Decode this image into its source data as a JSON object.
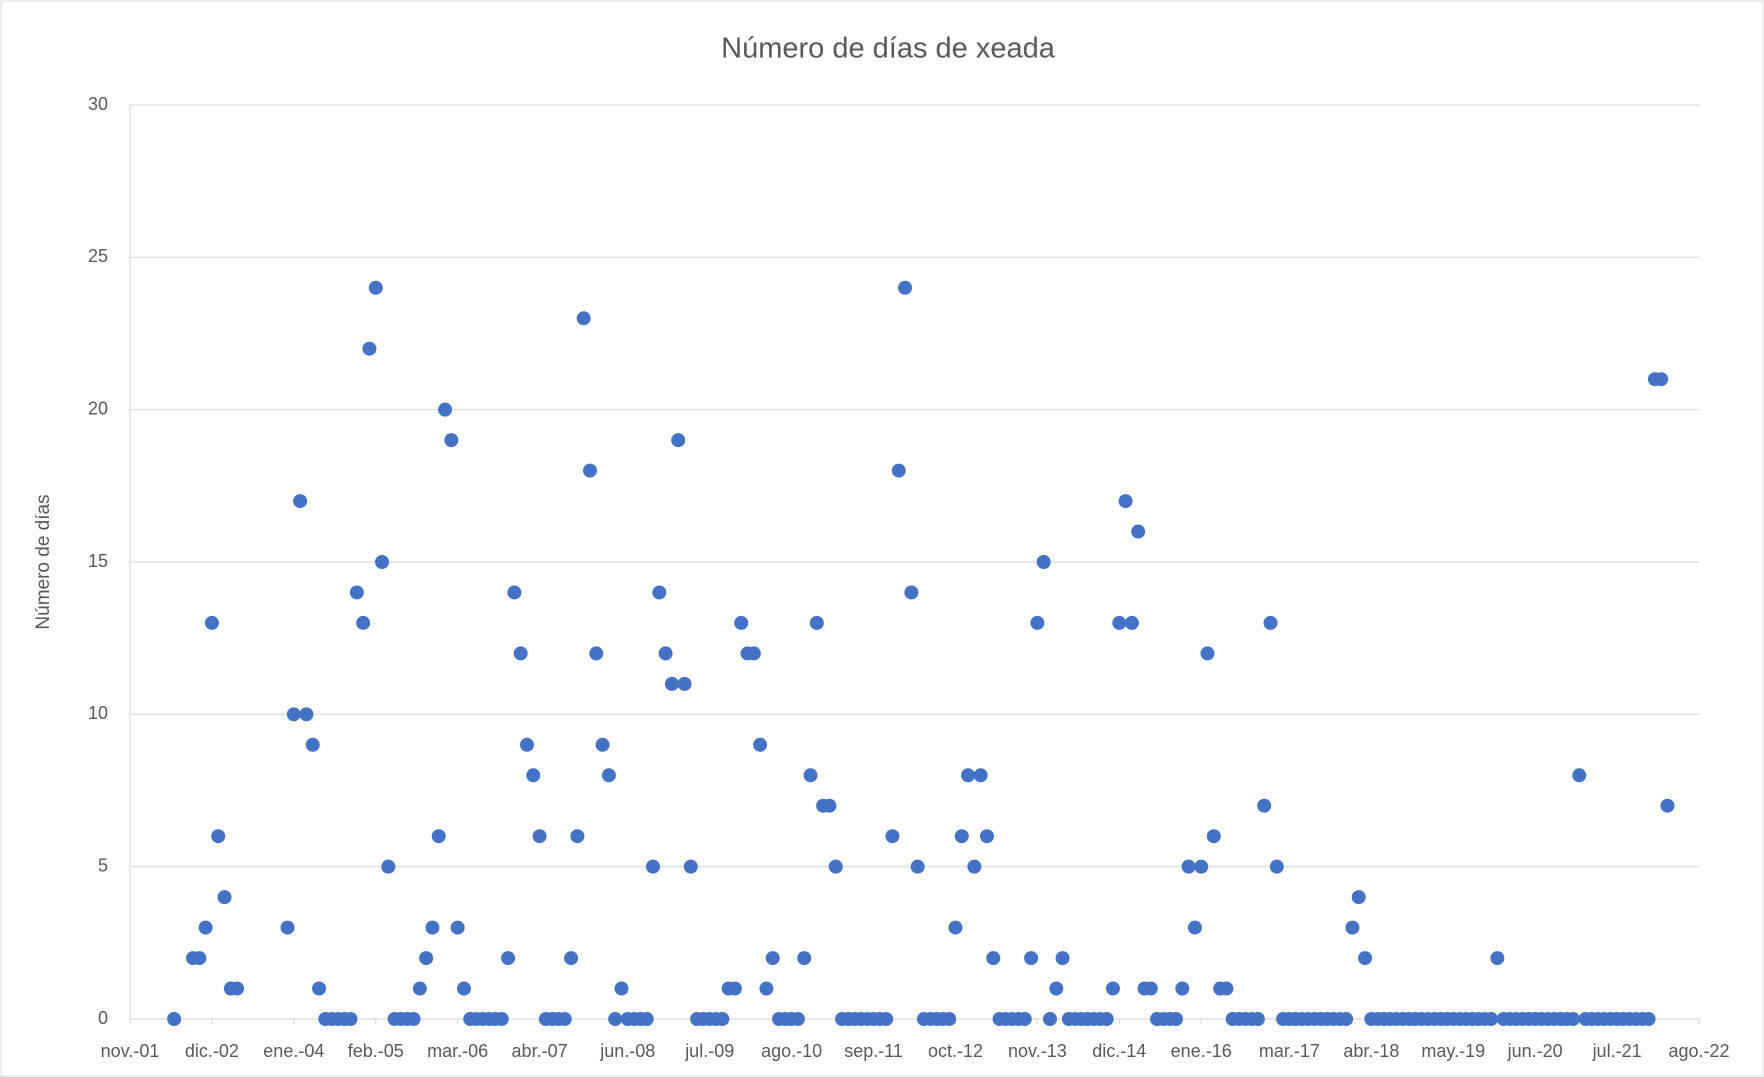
{
  "chart_data": {
    "type": "scatter",
    "title": "Número de días de xeada",
    "y_label": "Número de días",
    "color": "#4472c4",
    "grid": true,
    "ylim": [
      0,
      30
    ],
    "yticks": [
      0,
      5,
      10,
      15,
      20,
      25,
      30
    ],
    "xlim": [
      "2001-11",
      "2022-08"
    ],
    "xticks": [
      {
        "value": "2001-11",
        "label": "nov.-01"
      },
      {
        "value": "2002-12",
        "label": "dic.-02"
      },
      {
        "value": "2004-01",
        "label": "ene.-04"
      },
      {
        "value": "2005-02",
        "label": "feb.-05"
      },
      {
        "value": "2006-03",
        "label": "mar.-06"
      },
      {
        "value": "2007-04",
        "label": "abr.-07"
      },
      {
        "value": "2008-06",
        "label": "jun.-08"
      },
      {
        "value": "2009-07",
        "label": "jul.-09"
      },
      {
        "value": "2010-08",
        "label": "ago.-10"
      },
      {
        "value": "2011-09",
        "label": "sep.-11"
      },
      {
        "value": "2012-10",
        "label": "oct.-12"
      },
      {
        "value": "2013-11",
        "label": "nov.-13"
      },
      {
        "value": "2014-12",
        "label": "dic.-14"
      },
      {
        "value": "2016-01",
        "label": "ene.-16"
      },
      {
        "value": "2017-03",
        "label": "mar.-17"
      },
      {
        "value": "2018-04",
        "label": "abr.-18"
      },
      {
        "value": "2019-05",
        "label": "may.-19"
      },
      {
        "value": "2020-06",
        "label": "jun.-20"
      },
      {
        "value": "2021-07",
        "label": "jul.-21"
      },
      {
        "value": "2022-08",
        "label": "ago.-22"
      }
    ],
    "x": [
      "2002-06",
      "2002-09",
      "2002-10",
      "2002-11",
      "2002-12",
      "2003-01",
      "2003-02",
      "2003-03",
      "2003-04",
      "2003-12",
      "2004-01",
      "2004-02",
      "2004-03",
      "2004-04",
      "2004-05",
      "2004-06",
      "2004-07",
      "2004-08",
      "2004-09",
      "2004-10",
      "2004-11",
      "2004-12",
      "2005-01",
      "2005-02",
      "2005-03",
      "2005-04",
      "2005-05",
      "2005-06",
      "2005-07",
      "2005-08",
      "2005-09",
      "2005-10",
      "2005-11",
      "2005-12",
      "2006-01",
      "2006-02",
      "2006-03",
      "2006-04",
      "2006-05",
      "2006-06",
      "2006-07",
      "2006-08",
      "2006-09",
      "2006-10",
      "2006-11",
      "2006-12",
      "2007-01",
      "2007-02",
      "2007-03",
      "2007-04",
      "2007-05",
      "2007-06",
      "2007-07",
      "2007-08",
      "2007-09",
      "2007-10",
      "2007-11",
      "2007-12",
      "2008-01",
      "2008-02",
      "2008-03",
      "2008-04",
      "2008-05",
      "2008-06",
      "2008-07",
      "2008-08",
      "2008-09",
      "2008-10",
      "2008-11",
      "2008-12",
      "2009-01",
      "2009-02",
      "2009-03",
      "2009-04",
      "2009-05",
      "2009-06",
      "2009-07",
      "2009-08",
      "2009-09",
      "2009-10",
      "2009-11",
      "2009-12",
      "2010-01",
      "2010-02",
      "2010-03",
      "2010-04",
      "2010-05",
      "2010-06",
      "2010-07",
      "2010-08",
      "2010-09",
      "2010-10",
      "2010-11",
      "2010-12",
      "2011-01",
      "2011-02",
      "2011-03",
      "2011-04",
      "2011-05",
      "2011-06",
      "2011-07",
      "2011-08",
      "2011-09",
      "2011-10",
      "2011-11",
      "2011-12",
      "2012-01",
      "2012-02",
      "2012-03",
      "2012-04",
      "2012-05",
      "2012-06",
      "2012-07",
      "2012-08",
      "2012-09",
      "2012-10",
      "2012-11",
      "2012-12",
      "2013-01",
      "2013-02",
      "2013-03",
      "2013-04",
      "2013-05",
      "2013-06",
      "2013-07",
      "2013-08",
      "2013-09",
      "2013-10",
      "2013-11",
      "2013-12",
      "2014-01",
      "2014-02",
      "2014-03",
      "2014-04",
      "2014-05",
      "2014-06",
      "2014-07",
      "2014-08",
      "2014-09",
      "2014-10",
      "2014-11",
      "2014-12",
      "2015-01",
      "2015-02",
      "2015-03",
      "2015-04",
      "2015-05",
      "2015-06",
      "2015-07",
      "2015-08",
      "2015-09",
      "2015-10",
      "2015-11",
      "2015-12",
      "2016-01",
      "2016-02",
      "2016-03",
      "2016-04",
      "2016-05",
      "2016-06",
      "2016-07",
      "2016-08",
      "2016-09",
      "2016-10",
      "2016-11",
      "2016-12",
      "2017-01",
      "2017-02",
      "2017-03",
      "2017-04",
      "2017-05",
      "2017-06",
      "2017-07",
      "2017-08",
      "2017-09",
      "2017-10",
      "2017-11",
      "2017-12",
      "2018-01",
      "2018-02",
      "2018-03",
      "2018-04",
      "2018-05",
      "2018-06",
      "2018-07",
      "2018-08",
      "2018-09",
      "2018-10",
      "2018-11",
      "2018-12",
      "2019-01",
      "2019-02",
      "2019-03",
      "2019-04",
      "2019-05",
      "2019-06",
      "2019-07",
      "2019-08",
      "2019-09",
      "2019-10",
      "2019-11",
      "2019-12",
      "2020-01",
      "2020-02",
      "2020-03",
      "2020-04",
      "2020-05",
      "2020-06",
      "2020-07",
      "2020-08",
      "2020-09",
      "2020-10",
      "2020-11",
      "2020-12",
      "2021-01",
      "2021-02",
      "2021-03",
      "2021-04",
      "2021-05",
      "2021-06",
      "2021-07",
      "2021-08",
      "2021-09",
      "2021-10",
      "2021-11",
      "2021-12",
      "2022-01",
      "2022-02",
      "2022-03"
    ],
    "values": [
      0,
      2,
      2,
      3,
      13,
      6,
      4,
      1,
      1,
      3,
      10,
      17,
      10,
      9,
      1,
      0,
      0,
      0,
      0,
      0,
      14,
      13,
      22,
      24,
      15,
      5,
      0,
      0,
      0,
      0,
      1,
      2,
      3,
      6,
      20,
      19,
      3,
      1,
      0,
      0,
      0,
      0,
      0,
      0,
      2,
      14,
      12,
      9,
      8,
      6,
      0,
      0,
      0,
      0,
      2,
      6,
      23,
      18,
      12,
      9,
      8,
      0,
      1,
      0,
      0,
      0,
      0,
      5,
      14,
      12,
      11,
      19,
      11,
      5,
      0,
      0,
      0,
      0,
      0,
      1,
      1,
      13,
      12,
      12,
      9,
      1,
      2,
      0,
      0,
      0,
      0,
      2,
      8,
      13,
      7,
      7,
      5,
      0,
      0,
      0,
      0,
      0,
      0,
      0,
      0,
      6,
      18,
      24,
      14,
      5,
      0,
      0,
      0,
      0,
      0,
      3,
      6,
      8,
      5,
      8,
      6,
      2,
      0,
      0,
      0,
      0,
      0,
      2,
      13,
      15,
      0,
      1,
      2,
      0,
      0,
      0,
      0,
      0,
      0,
      0,
      1,
      13,
      17,
      13,
      16,
      1,
      1,
      0,
      0,
      0,
      0,
      1,
      5,
      3,
      5,
      12,
      6,
      1,
      1,
      0,
      0,
      0,
      0,
      0,
      7,
      13,
      5,
      0,
      0,
      0,
      0,
      0,
      0,
      0,
      0,
      0,
      0,
      0,
      3,
      4,
      2,
      0,
      0,
      0,
      0,
      0,
      0,
      0,
      0,
      0,
      0,
      0,
      0,
      0,
      0,
      0,
      0,
      0,
      0,
      0,
      0,
      2,
      0,
      0,
      0,
      0,
      0,
      0,
      0,
      0,
      0,
      0,
      0,
      0,
      8,
      0,
      0,
      0,
      0,
      0,
      0,
      0,
      0,
      0,
      0,
      0,
      21,
      21,
      7
    ]
  }
}
